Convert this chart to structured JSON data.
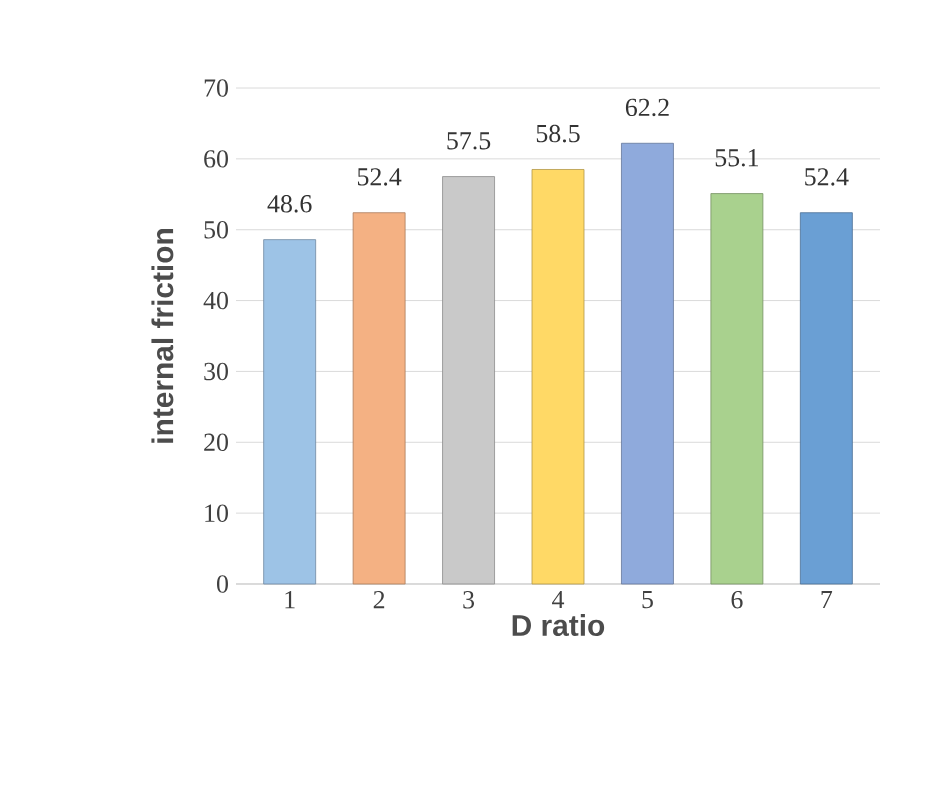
{
  "chart_data": {
    "type": "bar",
    "xlabel": "D ratio",
    "ylabel": "internal friction",
    "categories": [
      "1",
      "2",
      "3",
      "4",
      "5",
      "6",
      "7"
    ],
    "values": [
      48.6,
      52.4,
      57.5,
      58.5,
      62.2,
      55.1,
      52.4
    ],
    "value_labels": [
      "48.6",
      "52.4",
      "57.5",
      "58.5",
      "62.2",
      "55.1",
      "52.4"
    ],
    "colors": [
      "#9dc3e6",
      "#f4b183",
      "#c9c9c9",
      "#ffd966",
      "#8faadc",
      "#a9d18e",
      "#6a9fd4"
    ],
    "ylim": [
      0,
      70
    ],
    "yticks": [
      0,
      10,
      20,
      30,
      40,
      50,
      60,
      70
    ],
    "grid": "y"
  }
}
